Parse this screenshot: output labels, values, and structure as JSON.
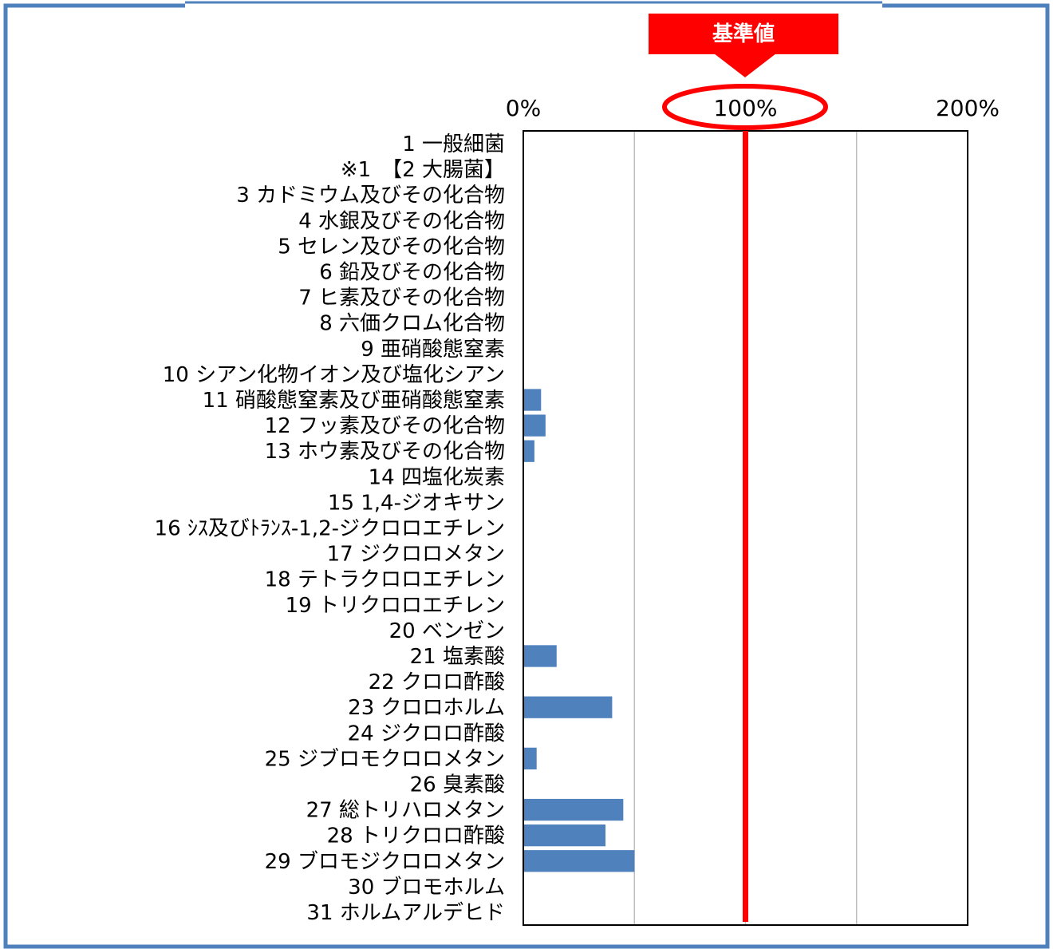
{
  "colors": {
    "frame": "#4f81bd",
    "bar": "#4f81bd",
    "reference_line": "#ff0000",
    "callout_fill": "#ff0000",
    "callout_text": "#ffffff",
    "grid": "#bfbfbf",
    "plot_border": "#000000"
  },
  "callout": {
    "label": "基準値",
    "highlighted_tick": "100%"
  },
  "chart_data": {
    "type": "bar",
    "orientation": "horizontal",
    "categories": [
      "1 一般細菌",
      "※1　【2 大腸菌】",
      "3 カドミウム及びその化合物",
      "4 水銀及びその化合物",
      "5 セレン及びその化合物",
      "6 鉛及びその化合物",
      "7 ヒ素及びその化合物",
      "8 六価クロム化合物",
      "9 亜硝酸態窒素",
      "10 シアン化物イオン及び塩化シアン",
      "11 硝酸態窒素及び亜硝酸態窒素",
      "12 フッ素及びその化合物",
      "13 ホウ素及びその化合物",
      "14 四塩化炭素",
      "15 1,4-ジオキサン",
      "16 ｼｽ及びﾄﾗﾝｽ-1,2-ジクロロエチレン",
      "17 ジクロロメタン",
      "18 テトラクロロエチレン",
      "19 トリクロロエチレン",
      "20 ベンゼン",
      "21 塩素酸",
      "22 クロロ酢酸",
      "23 クロロホルム",
      "24 ジクロロ酢酸",
      "25 ジブロモクロロメタン",
      "26 臭素酸",
      "27 総トリハロメタン",
      "28 トリクロロ酢酸",
      "29 ブロモジクロロメタン",
      "30 ブロモホルム",
      "31 ホルムアルデヒド"
    ],
    "values": [
      0,
      0,
      0,
      0,
      0,
      0,
      0,
      0,
      0,
      0,
      8,
      10,
      5,
      0,
      0,
      0,
      0,
      0,
      0,
      0,
      15,
      0,
      40,
      0,
      6,
      0,
      45,
      37,
      50,
      0,
      0
    ],
    "unit": "%",
    "xlim": [
      0,
      200
    ],
    "ticks": [
      0,
      50,
      100,
      150,
      200
    ],
    "tick_labels": [
      {
        "value": 0,
        "label": "0%"
      },
      {
        "value": 100,
        "label": "100%"
      },
      {
        "value": 200,
        "label": "200%"
      }
    ],
    "reference_value": 100,
    "grid": true,
    "legend": "none"
  }
}
